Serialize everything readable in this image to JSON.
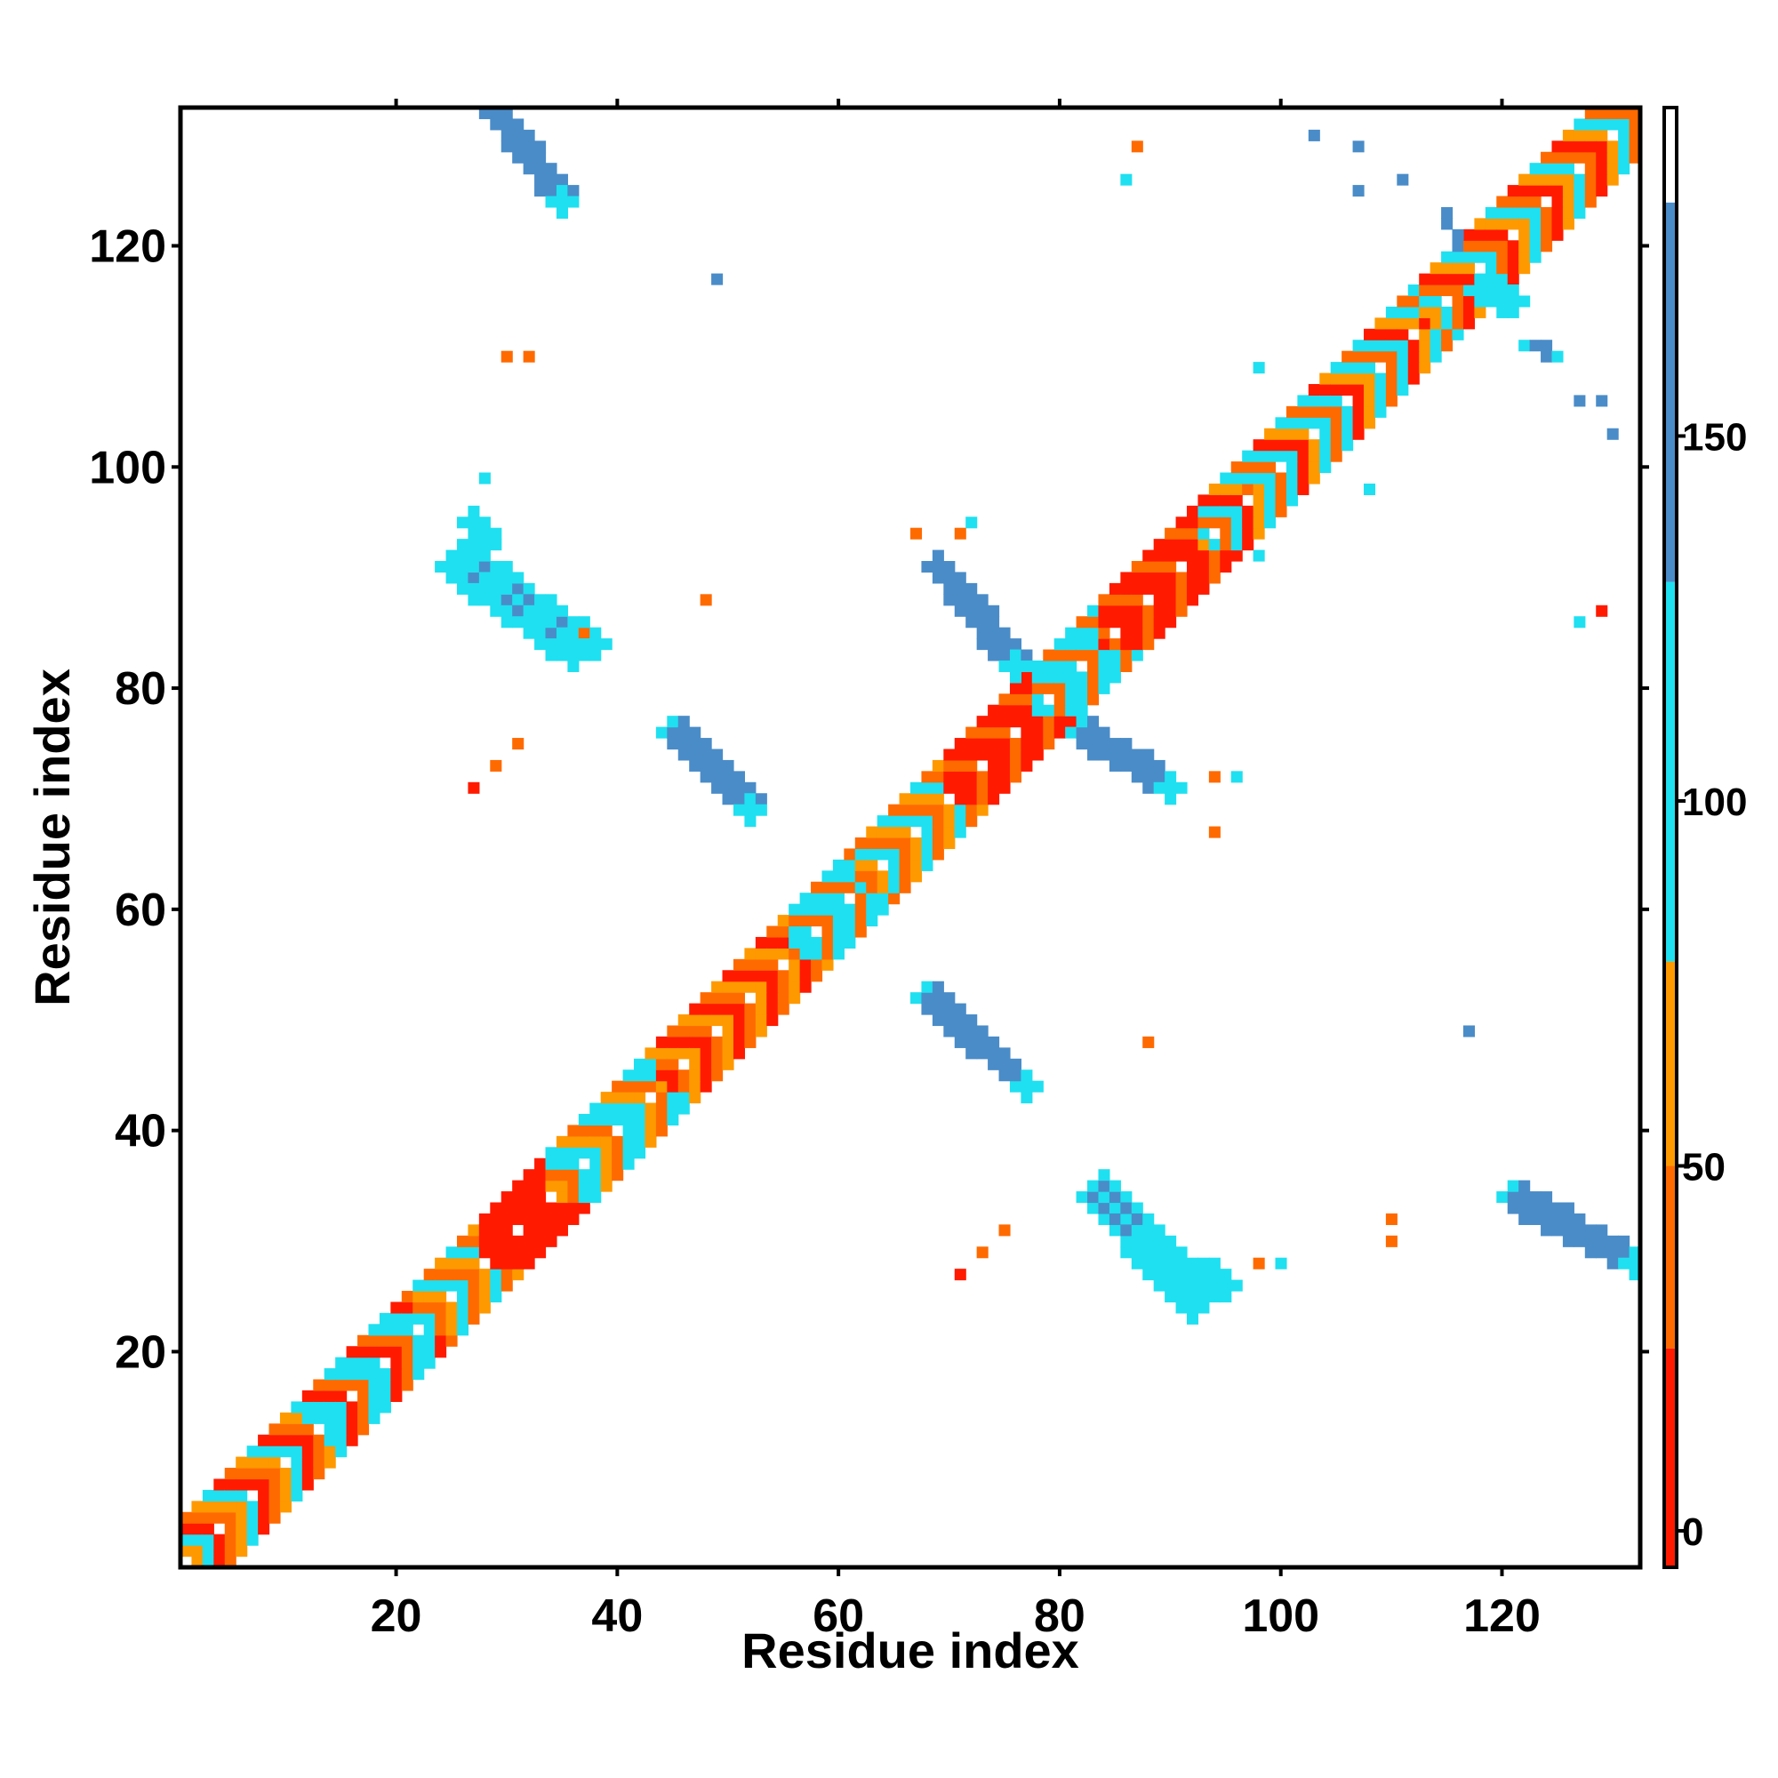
{
  "chart_data": {
    "type": "heatmap",
    "xlabel": "Residue index",
    "ylabel": "Residue index",
    "xlim": [
      1,
      132
    ],
    "ylim": [
      1,
      132
    ],
    "x_ticks": [
      "20",
      "40",
      "60",
      "80",
      "100",
      "120"
    ],
    "x_tick_values": [
      20,
      40,
      60,
      80,
      100,
      120
    ],
    "y_ticks": [
      "20",
      "40",
      "60",
      "80",
      "100",
      "120"
    ],
    "y_tick_values": [
      20,
      40,
      60,
      80,
      100,
      120
    ],
    "grid": false,
    "colorbar": {
      "ticks": [
        "0",
        "50",
        "100",
        "150"
      ],
      "tick_values": [
        0,
        50,
        100,
        150
      ],
      "range": [
        -5,
        195
      ],
      "bands": [
        {
          "from": -5,
          "to": 25,
          "color": "#ff1a00"
        },
        {
          "from": 25,
          "to": 50,
          "color": "#ff6a00"
        },
        {
          "from": 50,
          "to": 78,
          "color": "#ff9900"
        },
        {
          "from": 78,
          "to": 130,
          "color": "#1fe0f0"
        },
        {
          "from": 130,
          "to": 182,
          "color": "#4a8cc8"
        },
        {
          "from": 182,
          "to": 195,
          "color": "#ffffff"
        }
      ]
    },
    "colors": {
      "red": "#ff1a00",
      "dark_orange": "#ff6a00",
      "orange": "#ff9900",
      "cyan": "#1fe0f0",
      "steel_blue": "#4a8cc8"
    },
    "region_notes": "Symmetric residue-pair map: a dense diagonal band plus off-diagonal strips; each strip lists [x_start,y_start,x_end,y_end,half_width,value].",
    "diagonal": {
      "segments": [
        {
          "from": 1,
          "to": 12,
          "values": [
            10,
            45,
            65,
            95
          ]
        },
        {
          "from": 12,
          "to": 22,
          "values": [
            10,
            45,
            95,
            120
          ]
        },
        {
          "from": 22,
          "to": 28,
          "values": [
            45,
            65,
            95
          ]
        },
        {
          "from": 28,
          "to": 34,
          "values": [
            5,
            10,
            5
          ]
        },
        {
          "from": 34,
          "to": 44,
          "values": [
            45,
            95,
            120,
            65
          ]
        },
        {
          "from": 44,
          "to": 56,
          "values": [
            10,
            45,
            65
          ]
        },
        {
          "from": 56,
          "to": 62,
          "values": [
            95,
            120,
            45
          ]
        },
        {
          "from": 62,
          "to": 70,
          "values": [
            45,
            65,
            95
          ]
        },
        {
          "from": 70,
          "to": 78,
          "values": [
            5,
            45,
            10
          ]
        },
        {
          "from": 78,
          "to": 84,
          "values": [
            95,
            120,
            45
          ]
        },
        {
          "from": 84,
          "to": 93,
          "values": [
            10,
            45,
            5
          ]
        },
        {
          "from": 93,
          "to": 113,
          "values": [
            45,
            95,
            10,
            65,
            120
          ]
        },
        {
          "from": 113,
          "to": 132,
          "values": [
            45,
            10,
            65,
            95
          ]
        }
      ]
    },
    "strips": [
      [
        29,
        132,
        35,
        124,
        1.4,
        160
      ],
      [
        26,
        91,
        36,
        84,
        1.5,
        160
      ],
      [
        27,
        95,
        28,
        93,
        1.2,
        110
      ],
      [
        36,
        85,
        38,
        84,
        1.0,
        40
      ],
      [
        45,
        76,
        52,
        69,
        1.3,
        160
      ],
      [
        69,
        91,
        76,
        82,
        1.3,
        160
      ],
      [
        82,
        76,
        90,
        71,
        1.3,
        160
      ],
      [
        68,
        52,
        77,
        44,
        1.3,
        160
      ],
      [
        84,
        34,
        92,
        25,
        1.6,
        160
      ],
      [
        92,
        27,
        95,
        26,
        1.0,
        40
      ],
      [
        121,
        34,
        132,
        28,
        1.4,
        160
      ],
      [
        115,
        123,
        116,
        119,
        0.7,
        160
      ],
      [
        118,
        116,
        121,
        115,
        0.8,
        160
      ],
      [
        122,
        111,
        125,
        110,
        0.6,
        160
      ]
    ],
    "points": [
      [
        87,
        129,
        45
      ],
      [
        86,
        126,
        110
      ],
      [
        49,
        117,
        160
      ],
      [
        30,
        110,
        45
      ],
      [
        32,
        110,
        45
      ],
      [
        103,
        130,
        160
      ],
      [
        107,
        129,
        160
      ],
      [
        107,
        125,
        160
      ],
      [
        111,
        126,
        160
      ],
      [
        127,
        106,
        160
      ],
      [
        129,
        106,
        160
      ],
      [
        130,
        103,
        160
      ],
      [
        129,
        87,
        10
      ],
      [
        127,
        86,
        110
      ],
      [
        48,
        88,
        45
      ],
      [
        67,
        94,
        45
      ],
      [
        71,
        94,
        45
      ],
      [
        72,
        95,
        110
      ],
      [
        28,
        99,
        110
      ],
      [
        27,
        71,
        10
      ],
      [
        29,
        73,
        45
      ],
      [
        31,
        75,
        45
      ],
      [
        94,
        72,
        45
      ],
      [
        94,
        67,
        40
      ],
      [
        96,
        72,
        110
      ],
      [
        88,
        48,
        45
      ],
      [
        117,
        49,
        160
      ],
      [
        110,
        32,
        45
      ],
      [
        110,
        30,
        45
      ],
      [
        71,
        27,
        10
      ],
      [
        73,
        29,
        45
      ],
      [
        75,
        31,
        45
      ],
      [
        100,
        28,
        110
      ],
      [
        98,
        28,
        45
      ],
      [
        98,
        109,
        110
      ],
      [
        108,
        98,
        110
      ],
      [
        98,
        92,
        110
      ],
      [
        97,
        98,
        40
      ]
    ]
  }
}
